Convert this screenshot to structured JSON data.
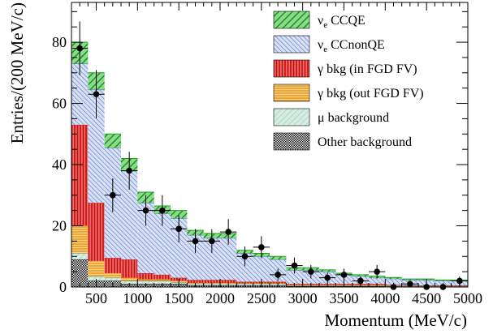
{
  "chart_data": {
    "type": "bar",
    "stacked": true,
    "title": "",
    "xlabel": "Momentum (MeV/c)",
    "ylabel": "Entries/(200 MeV/c)",
    "xlim": [
      200,
      5000
    ],
    "ylim": [
      0,
      93
    ],
    "xticks": [
      500,
      1000,
      1500,
      2000,
      2500,
      3000,
      3500,
      4000,
      4500,
      5000
    ],
    "yticks": [
      0,
      20,
      40,
      60,
      80
    ],
    "bin_edges": [
      200,
      400,
      600,
      800,
      1000,
      1200,
      1400,
      1600,
      1800,
      2000,
      2200,
      2400,
      2600,
      2800,
      3000,
      3200,
      3400,
      3600,
      3800,
      4000,
      4200,
      4400,
      4600,
      4800,
      5000
    ],
    "legend_position": "top-right",
    "legend_labels": {
      "nue_ccqe": {
        "main": "ν",
        "sub": "e",
        "rest": " CCQE"
      },
      "nue_ccnonqe": {
        "main": "ν",
        "sub": "e",
        "rest": " CCnonQE"
      },
      "gamma_in": {
        "main": "γ bkg (in FGD FV)",
        "sub": "",
        "rest": ""
      },
      "gamma_out": {
        "main": "γ bkg (out FGD FV)",
        "sub": "",
        "rest": ""
      },
      "mu_bkg": {
        "main": "μ background",
        "sub": "",
        "rest": ""
      },
      "other_bkg": {
        "main": "Other background",
        "sub": "",
        "rest": ""
      }
    },
    "series": [
      {
        "key": "other_bkg",
        "color": "#000000",
        "values": [
          9,
          2,
          2,
          1,
          1,
          1,
          1,
          0.5,
          0.5,
          0.5,
          0.5,
          0.5,
          0.5,
          0.3,
          0.3,
          0.3,
          0.3,
          0.3,
          0.3,
          0.2,
          0.2,
          0.2,
          0.2,
          0.2
        ]
      },
      {
        "key": "mu_bkg",
        "color": "#4fa37f",
        "values": [
          2,
          1.5,
          1,
          1,
          1,
          1,
          0.5,
          0.5,
          0.5,
          0.5,
          0.5,
          0.5,
          0.5,
          0.2,
          0.2,
          0.2,
          0.2,
          0.2,
          0.2,
          0.2,
          0.1,
          0.1,
          0.1,
          0.1
        ]
      },
      {
        "key": "gamma_out",
        "color": "#f0a020",
        "values": [
          9,
          5,
          1.5,
          1,
          0.5,
          0.5,
          0.5,
          0.3,
          0.3,
          0.3,
          0.2,
          0.2,
          0.2,
          0.1,
          0.1,
          0.1,
          0.1,
          0.1,
          0.1,
          0.1,
          0,
          0,
          0,
          0
        ]
      },
      {
        "key": "gamma_in",
        "color": "#d11a1a",
        "values": [
          33,
          19,
          5,
          6,
          2,
          1.5,
          1,
          1,
          1,
          1,
          0.5,
          0.5,
          0.5,
          0.4,
          0.4,
          0.4,
          0.4,
          0.4,
          0.4,
          0.2,
          0.2,
          0.2,
          0.2,
          0.2
        ]
      },
      {
        "key": "nue_ccnonqe",
        "color": "#4f6fc9",
        "values": [
          20,
          37,
          36,
          29,
          23,
          20,
          19.5,
          14.7,
          13.7,
          13.7,
          9.3,
          8.3,
          7.3,
          4.5,
          4.5,
          4,
          3,
          2.5,
          2,
          2,
          1.8,
          1.8,
          1.5,
          1.5
        ]
      },
      {
        "key": "nue_ccqe",
        "color": "#1aa31a",
        "values": [
          7,
          5.5,
          4.5,
          4,
          3.5,
          2.5,
          2.5,
          1.5,
          1.5,
          1.5,
          1,
          1,
          1,
          0.8,
          0.8,
          0.6,
          0.5,
          0.5,
          0.5,
          0.4,
          0.3,
          0.3,
          0.3,
          0.3
        ]
      }
    ],
    "data_points": {
      "x": [
        300,
        500,
        700,
        900,
        1100,
        1300,
        1500,
        1700,
        1900,
        2100,
        2300,
        2500,
        2700,
        2900,
        3100,
        3300,
        3500,
        3700,
        3900,
        4100,
        4300,
        4500,
        4700,
        4900
      ],
      "y": [
        78,
        63,
        30,
        38,
        25,
        25,
        19,
        15,
        15,
        18,
        10,
        13,
        4,
        7,
        5,
        3,
        4,
        2,
        5,
        0,
        1,
        0,
        0,
        2
      ],
      "err": [
        8.8,
        7.9,
        5.5,
        6.2,
        5,
        5,
        4.4,
        3.9,
        3.9,
        4.2,
        3.2,
        3.6,
        2,
        2.6,
        2.2,
        1.7,
        2,
        1.4,
        2.2,
        0,
        1,
        0,
        0,
        1.4
      ]
    },
    "legend_order": [
      "nue_ccqe",
      "nue_ccnonqe",
      "gamma_in",
      "gamma_out",
      "mu_bkg",
      "other_bkg"
    ]
  }
}
